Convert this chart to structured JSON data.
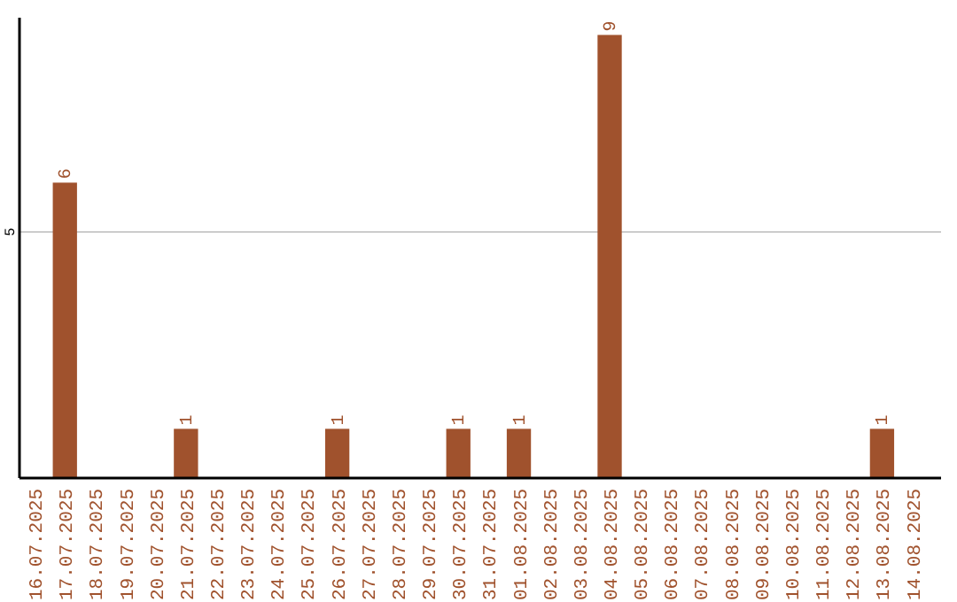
{
  "chart_data": {
    "type": "bar",
    "categories": [
      "16.07.2025",
      "17.07.2025",
      "18.07.2025",
      "19.07.2025",
      "20.07.2025",
      "21.07.2025",
      "22.07.2025",
      "23.07.2025",
      "24.07.2025",
      "25.07.2025",
      "26.07.2025",
      "27.07.2025",
      "28.07.2025",
      "29.07.2025",
      "30.07.2025",
      "31.07.2025",
      "01.08.2025",
      "02.08.2025",
      "03.08.2025",
      "04.08.2025",
      "05.08.2025",
      "06.08.2025",
      "07.08.2025",
      "08.08.2025",
      "09.08.2025",
      "10.08.2025",
      "11.08.2025",
      "12.08.2025",
      "13.08.2025",
      "14.08.2025"
    ],
    "values": [
      0,
      6,
      0,
      0,
      0,
      1,
      0,
      0,
      0,
      0,
      1,
      0,
      0,
      0,
      1,
      0,
      1,
      0,
      0,
      9,
      0,
      0,
      0,
      0,
      0,
      0,
      0,
      0,
      1,
      0
    ],
    "value_labels": [
      null,
      "6",
      null,
      null,
      null,
      "1",
      null,
      null,
      null,
      null,
      "1",
      null,
      null,
      null,
      "1",
      null,
      "1",
      null,
      null,
      "9",
      null,
      null,
      null,
      null,
      null,
      null,
      null,
      null,
      "1",
      null
    ],
    "color": "#a0522d",
    "ylim": [
      0,
      9.35
    ],
    "yticks": [
      5
    ],
    "grid": "y"
  }
}
